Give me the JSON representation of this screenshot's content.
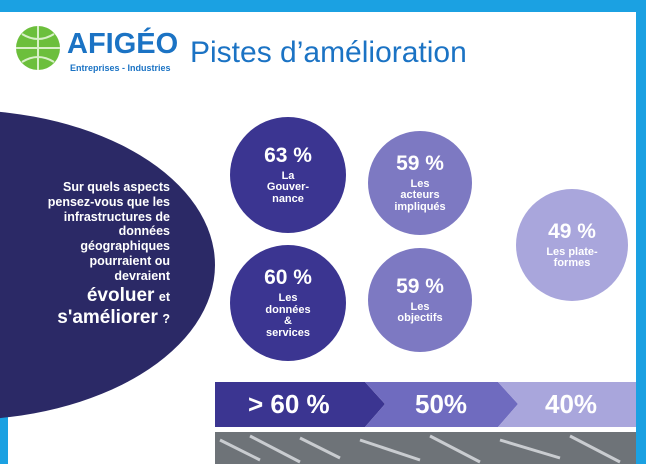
{
  "header": {
    "logo": "AFIGÉO",
    "tagline": "Entreprises - Industries",
    "title": "Pistes d’amélioration"
  },
  "question": {
    "lines": [
      "Sur quels aspects",
      "pensez-vous que les",
      "infrastructures de",
      "données",
      "géographiques",
      "pourraient ou",
      "devraient"
    ],
    "emphasis_1": "évoluer",
    "connector": "et",
    "emphasis_2": "s'améliorer",
    "end": "?"
  },
  "circles": [
    {
      "percent": "63 %",
      "label": [
        "La",
        "Gouver-",
        "nance"
      ]
    },
    {
      "percent": "60 %",
      "label": [
        "Les",
        "données",
        "&",
        "services"
      ]
    },
    {
      "percent": "59 %",
      "label": [
        "Les",
        "acteurs",
        "impliqués"
      ]
    },
    {
      "percent": "59 %",
      "label": [
        "Les",
        "objectifs"
      ]
    },
    {
      "percent": "49 %",
      "label": [
        "Les plate-",
        "formes"
      ]
    }
  ],
  "scale": [
    "> 60 %",
    "50%",
    "40%"
  ]
}
